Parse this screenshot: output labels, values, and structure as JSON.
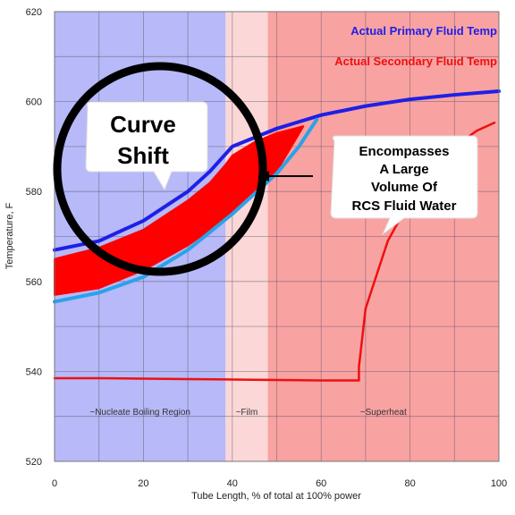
{
  "chart_data": {
    "type": "area",
    "xlabel": "Tube Length, % of total at 100% power",
    "ylabel": "Temperature, F",
    "xlim": [
      0,
      100
    ],
    "ylim": [
      520,
      620
    ],
    "x_ticks": [
      "0",
      "20",
      "40",
      "60",
      "80",
      "100"
    ],
    "y_ticks": [
      "520",
      "540",
      "560",
      "580",
      "600",
      "620"
    ],
    "grid": true,
    "regions": [
      {
        "label": "~Nucleate Boiling Region",
        "x_start": 0,
        "x_end": 38.5,
        "color": "#b7b9f8"
      },
      {
        "label": "~Film",
        "x_start": 38.5,
        "x_end": 48,
        "color": "#fbd7d7"
      },
      {
        "label": "~Superheat",
        "x_start": 48,
        "x_end": 100,
        "color": "#f9a2a2"
      }
    ],
    "legend": {
      "placement": "top-right",
      "entries": [
        {
          "label": "Actual Primary Fluid Temp",
          "color": "#1f1fe6"
        },
        {
          "label": "Actual Secondary Fluid Temp",
          "color": "#ee1010"
        }
      ]
    },
    "series": [
      {
        "name": "Actual Primary Fluid Temp",
        "color": "#1f1fe6",
        "x": [
          0,
          10,
          20,
          30,
          35,
          40,
          45,
          50,
          55,
          60,
          70,
          80,
          90,
          100
        ],
        "y": [
          567,
          569,
          573.5,
          580,
          584.5,
          590,
          592,
          594,
          595.5,
          597,
          599,
          600.5,
          601.5,
          602.3
        ]
      },
      {
        "name": "Actual Secondary Fluid Temp",
        "color": "#ee1010",
        "x": [
          0,
          10,
          20,
          30,
          40,
          50,
          60,
          68.5,
          68.5,
          70,
          75,
          80,
          85,
          90,
          95,
          99
        ],
        "y": [
          538.5,
          538.5,
          538.4,
          538.3,
          538.2,
          538.1,
          538,
          538,
          541,
          554,
          569,
          578,
          585,
          590,
          593.5,
          595.3
        ]
      },
      {
        "name": "",
        "color": "#2aa2e8",
        "x": [
          0,
          10,
          20,
          30,
          40,
          50,
          55,
          59
        ],
        "y": [
          555.5,
          557.5,
          561,
          567,
          575,
          584,
          590,
          596
        ]
      }
    ],
    "band": {
      "color": "#ff0000",
      "upper": {
        "x": [
          0,
          10,
          20,
          30,
          35,
          38.5,
          40,
          45,
          50,
          56
        ],
        "y": [
          565,
          567.5,
          571.5,
          578,
          582,
          586,
          588,
          591,
          593,
          594.5
        ]
      },
      "lower": {
        "x": [
          56,
          50,
          45,
          40,
          35,
          30,
          20,
          10,
          0
        ],
        "y": [
          594.5,
          584.5,
          580,
          575.5,
          571.5,
          568,
          562.5,
          558.5,
          557
        ]
      }
    },
    "annotations": [
      {
        "text": "Curve Shift",
        "lines": [
          "Curve",
          "Shift"
        ]
      },
      {
        "text": "Encompasses A Large Volume Of RCS Fluid Water",
        "lines": [
          "Encompasses",
          "A Large",
          "Volume Of",
          "RCS Fluid Water"
        ]
      }
    ]
  }
}
